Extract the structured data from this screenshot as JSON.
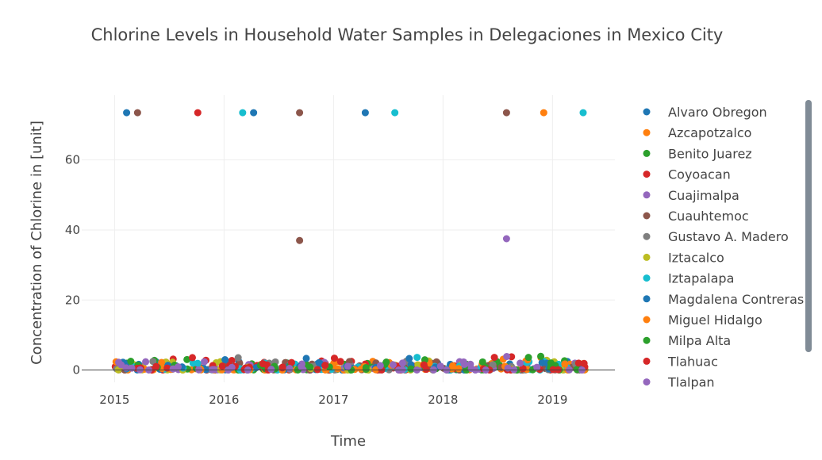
{
  "chart_data": {
    "type": "scatter",
    "title": "Chlorine Levels in Household Water Samples in Delegaciones in Mexico City",
    "xlabel": "Time",
    "ylabel": "Concentration of Chlorine in [unit]",
    "x_ticks": [
      "2015",
      "2016",
      "2017",
      "2018",
      "2019"
    ],
    "y_ticks": [
      0,
      20,
      40,
      60
    ],
    "xlim": [
      2014.7,
      2019.57
    ],
    "ylim": [
      -3.5,
      78.5
    ],
    "grid": true,
    "legend_position": "right",
    "series": [
      {
        "name": "Alvaro Obregon",
        "color": "#1f77b4",
        "points": [
          [
            2015.11,
            73.5
          ],
          [
            2016.27,
            73.5
          ],
          [
            2017.29,
            73.5
          ]
        ]
      },
      {
        "name": "Azcapotzalco",
        "color": "#ff7f0e",
        "points": [
          [
            2018.92,
            73.5
          ]
        ]
      },
      {
        "name": "Benito Juarez",
        "color": "#2ca02c",
        "points": []
      },
      {
        "name": "Coyoacan",
        "color": "#d62728",
        "points": [
          [
            2015.76,
            73.5
          ]
        ]
      },
      {
        "name": "Cuajimalpa",
        "color": "#9467bd",
        "points": [
          [
            2018.58,
            37.5
          ]
        ]
      },
      {
        "name": "Cuauhtemoc",
        "color": "#8c564b",
        "points": [
          [
            2015.21,
            73.5
          ],
          [
            2016.69,
            73.5
          ],
          [
            2016.69,
            37.0
          ],
          [
            2018.58,
            73.5
          ]
        ]
      },
      {
        "name": "Gustavo A. Madero",
        "color": "#7f7f7f",
        "points": []
      },
      {
        "name": "Iztacalco",
        "color": "#bcbd22",
        "points": []
      },
      {
        "name": "Iztapalapa",
        "color": "#17becf",
        "points": [
          [
            2016.17,
            73.5
          ],
          [
            2017.56,
            73.5
          ],
          [
            2019.28,
            73.5
          ]
        ]
      },
      {
        "name": "Magdalena Contreras",
        "color": "#1f77b4",
        "points": []
      },
      {
        "name": "Miguel Hidalgo",
        "color": "#ff7f0e",
        "points": []
      },
      {
        "name": "Milpa Alta",
        "color": "#2ca02c",
        "points": []
      },
      {
        "name": "Tlahuac",
        "color": "#d62728",
        "points": []
      },
      {
        "name": "Tlalpan",
        "color": "#9467bd",
        "points": []
      }
    ],
    "low_level_samples": {
      "x_range": [
        2015.0,
        2019.3
      ],
      "typical_y_range": [
        0.0,
        2.5
      ],
      "occasional_max": 4.0,
      "note_points_per_series": 40
    }
  }
}
